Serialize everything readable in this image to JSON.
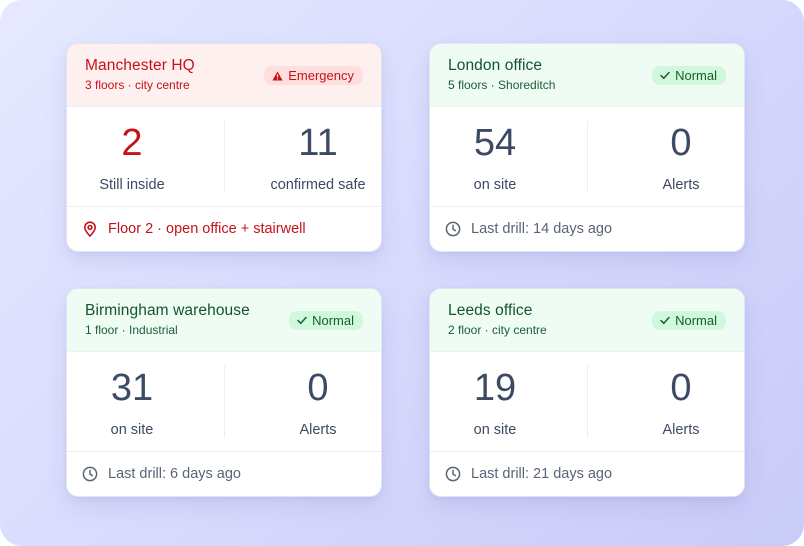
{
  "colors": {
    "emergency": "#c4121a",
    "normal": "#14532d",
    "stat_text": "#3d4a63",
    "muted_text": "#5a6476"
  },
  "cards": [
    {
      "name": "Manchester HQ",
      "subtitle": "3 floors · city centre",
      "status": "Emergency",
      "status_icon": "warning-icon",
      "stats": [
        {
          "value": "2",
          "label": "Still inside"
        },
        {
          "value": "11",
          "label": "confirmed safe"
        }
      ],
      "footer": {
        "icon": "location-pin-icon",
        "text": "Floor 2 · open office + stairwell"
      }
    },
    {
      "name": "London office",
      "subtitle": "5 floors · Shoreditch",
      "status": "Normal",
      "status_icon": "check-icon",
      "stats": [
        {
          "value": "54",
          "label": "on site"
        },
        {
          "value": "0",
          "label": "Alerts"
        }
      ],
      "footer": {
        "icon": "clock-icon",
        "text": "Last drill: 14 days ago"
      }
    },
    {
      "name": "Birmingham warehouse",
      "subtitle": "1 floor · Industrial",
      "status": "Normal",
      "status_icon": "check-icon",
      "stats": [
        {
          "value": "31",
          "label": "on site"
        },
        {
          "value": "0",
          "label": "Alerts"
        }
      ],
      "footer": {
        "icon": "clock-icon",
        "text": "Last drill: 6 days ago"
      }
    },
    {
      "name": "Leeds office",
      "subtitle": "2 floor · city centre",
      "status": "Normal",
      "status_icon": "check-icon",
      "stats": [
        {
          "value": "19",
          "label": "on site"
        },
        {
          "value": "0",
          "label": "Alerts"
        }
      ],
      "footer": {
        "icon": "clock-icon",
        "text": "Last drill: 21 days ago"
      }
    }
  ]
}
